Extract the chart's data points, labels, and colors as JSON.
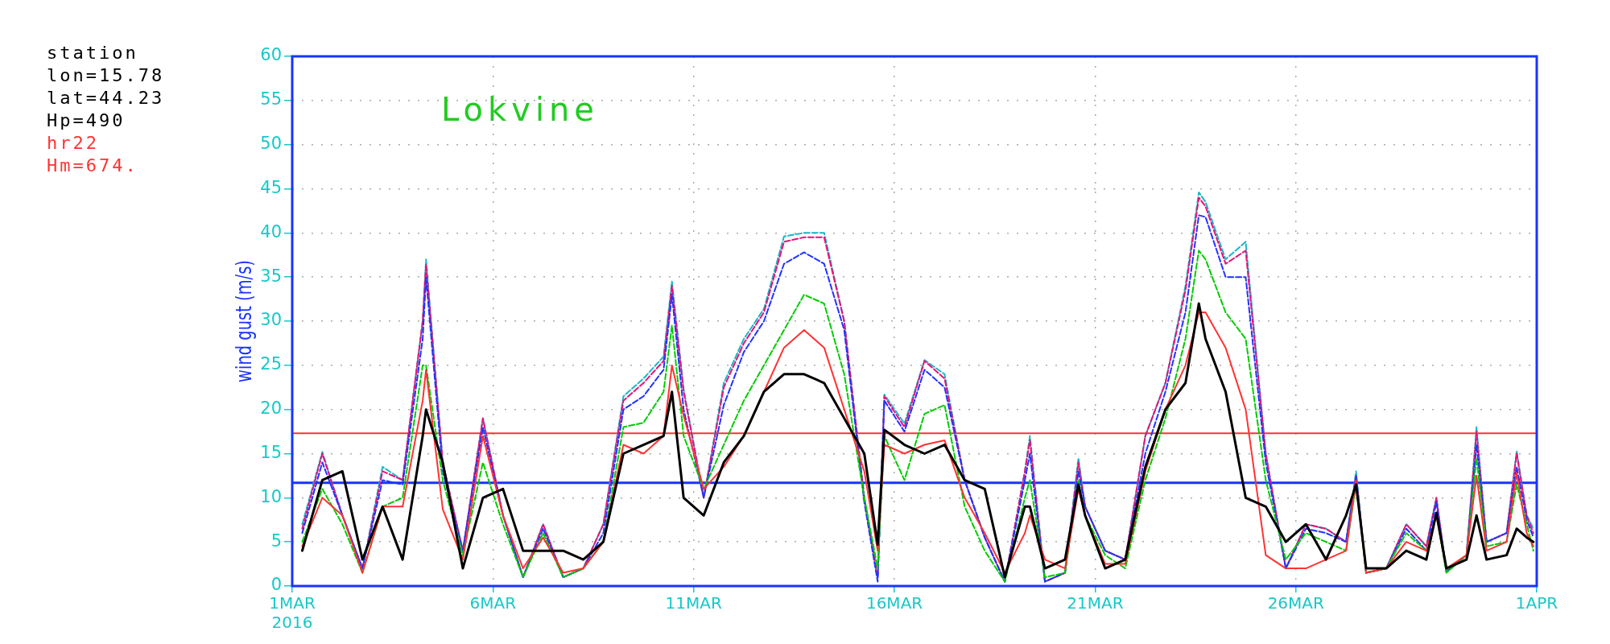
{
  "chart_data": {
    "type": "line",
    "title": "Lokvine",
    "ylabel": "wind gust (m/s)",
    "annotations": [
      "station",
      "lon=15.78",
      "lat=44.23",
      "Hp=490",
      "hr22",
      "Hm=674."
    ],
    "x": [
      "2016-03-01T06:00",
      "2016-03-01T18:00",
      "2016-03-02T06:00",
      "2016-03-02T18:00",
      "2016-03-03T06:00",
      "2016-03-03T18:00",
      "2016-03-04T06:00",
      "2016-03-04T08:00",
      "2016-03-04T18:00",
      "2016-03-05T06:00",
      "2016-03-05T18:00",
      "2016-03-06T06:00",
      "2016-03-06T18:00",
      "2016-03-07T06:00",
      "2016-03-07T18:00",
      "2016-03-08T06:00",
      "2016-03-08T18:00",
      "2016-03-09T06:00",
      "2016-03-09T18:00",
      "2016-03-10T06:00",
      "2016-03-10T11:00",
      "2016-03-10T18:00",
      "2016-03-11T06:00",
      "2016-03-11T18:00",
      "2016-03-12T06:00",
      "2016-03-12T18:00",
      "2016-03-13T06:00",
      "2016-03-13T18:00",
      "2016-03-14T06:00",
      "2016-03-14T18:00",
      "2016-03-15T06:00",
      "2016-03-15T14:00",
      "2016-03-15T18:00",
      "2016-03-16T06:00",
      "2016-03-16T18:00",
      "2016-03-17T06:00",
      "2016-03-17T18:00",
      "2016-03-18T06:00",
      "2016-03-18T18:00",
      "2016-03-19T06:00",
      "2016-03-19T09:00",
      "2016-03-19T18:00",
      "2016-03-20T06:00",
      "2016-03-20T14:00",
      "2016-03-20T18:00",
      "2016-03-21T06:00",
      "2016-03-21T18:00",
      "2016-03-22T06:00",
      "2016-03-22T18:00",
      "2016-03-23T06:00",
      "2016-03-23T14:00",
      "2016-03-23T18:00",
      "2016-03-24T06:00",
      "2016-03-24T18:00",
      "2016-03-25T06:00",
      "2016-03-25T18:00",
      "2016-03-26T06:00",
      "2016-03-26T18:00",
      "2016-03-27T06:00",
      "2016-03-27T12:00",
      "2016-03-27T18:00",
      "2016-03-28T06:00",
      "2016-03-28T18:00",
      "2016-03-29T06:00",
      "2016-03-29T12:00",
      "2016-03-29T18:00",
      "2016-03-30T06:00",
      "2016-03-30T12:00",
      "2016-03-30T18:00",
      "2016-03-31T06:00",
      "2016-03-31T12:00",
      "2016-03-31T18:00",
      "2016-03-31T22:00"
    ],
    "series": [
      {
        "color": "#17b8c8",
        "line_style": "dashed",
        "values": [
          7,
          15.2,
          8,
          2,
          13.5,
          12,
          30,
          37,
          14,
          4,
          19,
          8,
          1,
          7,
          1,
          2,
          7,
          21.5,
          23.5,
          26,
          34.5,
          22.3,
          10,
          23,
          28,
          31.4,
          39.6,
          40,
          40,
          30,
          10,
          1,
          21.7,
          18.4,
          25.6,
          24,
          12,
          5.5,
          0.5,
          13,
          17,
          0.5,
          1.5,
          14.5,
          9,
          4,
          3,
          17,
          23,
          34,
          44.6,
          43.5,
          37,
          39,
          15,
          2,
          7,
          6.5,
          5,
          13,
          1.5,
          2,
          7,
          4.5,
          10,
          1.6,
          3.5,
          18,
          5,
          6,
          15.3,
          8,
          6.5
        ]
      },
      {
        "color": "#e8127a",
        "line_style": "dashed",
        "values": [
          6.5,
          15,
          8,
          2,
          13,
          12,
          30,
          36.5,
          14,
          4,
          19,
          8,
          1,
          7,
          1,
          2,
          7,
          21,
          23,
          25.5,
          34,
          22,
          10,
          22.5,
          27.5,
          31,
          39,
          39.5,
          39.5,
          30,
          10,
          1,
          21.5,
          18,
          25.5,
          23.5,
          12,
          5.5,
          0.5,
          13,
          16.5,
          0.5,
          1.5,
          14,
          9,
          4,
          3,
          17,
          23,
          33.5,
          44,
          43,
          36.5,
          38,
          15,
          2,
          7,
          6.5,
          5,
          12.5,
          1.5,
          2,
          7,
          4.5,
          10,
          1.6,
          3.5,
          17.5,
          5,
          6,
          15,
          8,
          6
        ]
      },
      {
        "color": "#2233ff",
        "line_style": "dashed",
        "values": [
          6,
          14,
          8,
          2,
          12,
          11.5,
          28,
          35,
          13,
          4,
          18,
          8,
          1,
          6.5,
          1,
          2,
          6,
          20,
          21.5,
          24.5,
          33,
          20,
          10,
          20.5,
          26.5,
          30,
          36.5,
          37.8,
          36.5,
          29,
          9.5,
          0.5,
          21,
          17.5,
          24.5,
          22.5,
          12,
          5.5,
          0.5,
          12,
          15,
          0.5,
          1.5,
          13,
          9,
          4,
          3,
          15,
          22,
          31,
          42,
          41.8,
          35,
          35,
          14,
          2,
          6.5,
          6,
          5,
          12.5,
          1.5,
          2,
          6.5,
          4,
          9.5,
          1.6,
          3.5,
          16,
          5,
          6,
          13.5,
          7.5,
          5.5
        ]
      },
      {
        "color": "#00cc00",
        "line_style": "dashed",
        "values": [
          5,
          11,
          7,
          1.5,
          9,
          10,
          25,
          25,
          12,
          3.5,
          14,
          7,
          1,
          6,
          1,
          2,
          5,
          18,
          18.5,
          22,
          29.5,
          17,
          11,
          16,
          21,
          25,
          29,
          33,
          32,
          24,
          10,
          2,
          17,
          12,
          19.5,
          20.5,
          9,
          4,
          0.5,
          10,
          12,
          1,
          1.5,
          12,
          8,
          3.5,
          2,
          12,
          19,
          28,
          38,
          37,
          31,
          28,
          12,
          3,
          6,
          5,
          4,
          11.5,
          1.5,
          2,
          6,
          4,
          8,
          1.5,
          3.5,
          14.5,
          4.5,
          5,
          11.5,
          7,
          4
        ]
      },
      {
        "color": "#ff3333",
        "line_style": "solid",
        "values": [
          4.5,
          10,
          8,
          1.5,
          9,
          9,
          21,
          24.5,
          8.7,
          3,
          17,
          8,
          2,
          5.5,
          1.5,
          2,
          5,
          16,
          15,
          17,
          25,
          19.3,
          11,
          13.5,
          17,
          22,
          27,
          29,
          27,
          20,
          13,
          4,
          16,
          15,
          16,
          16.5,
          10,
          6,
          1.5,
          6,
          8,
          3,
          2,
          11,
          8,
          2.5,
          2.5,
          13,
          20,
          25,
          31,
          31,
          27,
          20,
          3.5,
          2,
          2,
          3,
          4,
          12,
          1.5,
          2,
          5,
          4,
          8,
          2,
          3.5,
          12.5,
          4,
          5,
          12.8,
          6,
          4.5
        ]
      },
      {
        "color": "#000000",
        "line_style": "solid",
        "values": [
          4,
          12,
          13,
          3,
          9,
          3,
          17,
          20,
          14,
          2,
          10,
          11,
          4,
          4,
          4,
          3,
          5,
          15,
          16,
          17,
          22,
          10,
          8,
          14,
          17,
          22,
          24,
          24,
          23,
          19,
          15,
          4.7,
          17.7,
          16,
          15,
          16,
          12,
          11,
          1,
          9,
          9,
          2,
          3,
          11.5,
          8,
          2,
          3,
          13.5,
          20,
          23,
          32,
          28,
          22,
          10,
          9,
          5,
          7,
          3,
          8,
          11.5,
          2,
          2,
          4,
          3,
          8.3,
          2,
          3,
          8,
          3,
          3.5,
          6.5,
          5.5,
          5
        ]
      }
    ],
    "xlim": [
      "2016-03-01",
      "2016-04-01"
    ],
    "xticks": [
      {
        "value": "2016-03-01",
        "label": "1MAR\n2016"
      },
      {
        "value": "2016-03-06",
        "label": "6MAR"
      },
      {
        "value": "2016-03-11",
        "label": "11MAR"
      },
      {
        "value": "2016-03-16",
        "label": "16MAR"
      },
      {
        "value": "2016-03-21",
        "label": "21MAR"
      },
      {
        "value": "2016-03-26",
        "label": "26MAR"
      },
      {
        "value": "2016-04-01",
        "label": "1APR"
      }
    ],
    "ylim": [
      0,
      60
    ],
    "yticks": [
      0,
      5,
      10,
      15,
      20,
      25,
      30,
      35,
      40,
      45,
      50,
      55,
      60
    ],
    "ref_lines": [
      {
        "axis": "y",
        "value": 17.3,
        "color": "#ff3333"
      },
      {
        "axis": "y",
        "value": 11.7,
        "color": "#1a33ff"
      }
    ],
    "grid": true,
    "legend": false,
    "marker": "none"
  }
}
